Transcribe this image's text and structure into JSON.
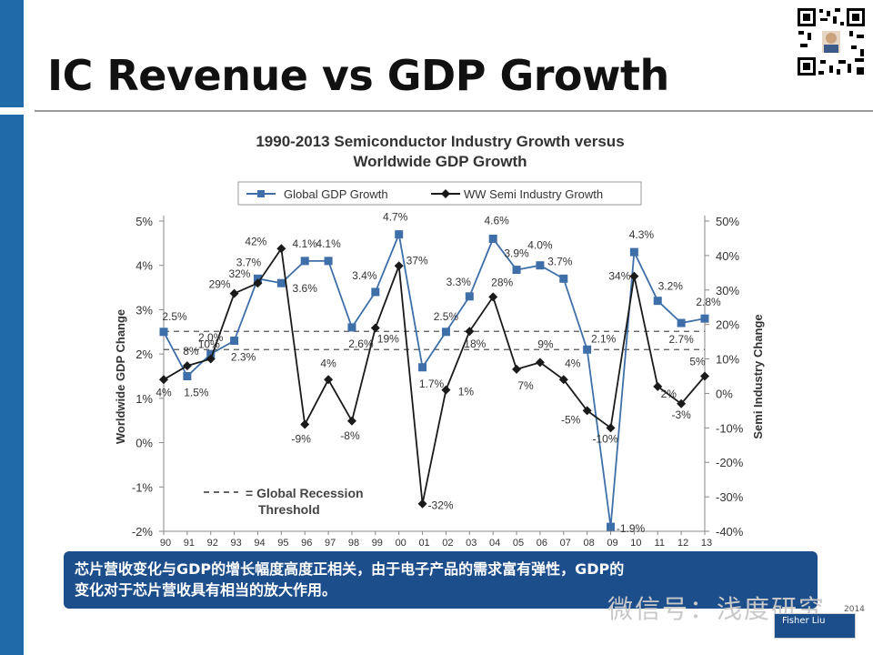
{
  "slide": {
    "title": "IC Revenue vs GDP Growth",
    "banner_line1": "芯片营收变化与GDP的增长幅度高度正相关，由于电子产品的需求富有弹性，GDP的",
    "banner_line2": "变化对于芯片营收具有相当的放大作用。",
    "watermark": "微信号：浅度研究",
    "watermark_year": "2014",
    "author": "Fisher Liu"
  },
  "colors": {
    "accent_bar": "#1f6aa8",
    "gdp_series": "#3e6fa9",
    "semi_series": "#1a1a1a",
    "banner": "#1d4e8c"
  },
  "chart_data": {
    "type": "line",
    "title": "1990-2013 Semiconductor Industry Growth versus Worldwide GDP Growth",
    "title_lines": [
      "1990-2013 Semiconductor Industry Growth versus",
      "Worldwide GDP Growth"
    ],
    "x": [
      "90",
      "91",
      "92",
      "93",
      "94",
      "95",
      "96",
      "97",
      "98",
      "99",
      "00",
      "01",
      "02",
      "03",
      "04",
      "05",
      "06",
      "07",
      "08",
      "09",
      "10",
      "11",
      "12",
      "13"
    ],
    "ylabel": "Worldwide GDP Change",
    "y2label": "Semi Industry Change",
    "ylim": [
      -2,
      5
    ],
    "y2lim": [
      -40,
      50
    ],
    "y_ticks": [
      "-2%",
      "-1%",
      "0%",
      "1%",
      "2%",
      "3%",
      "4%",
      "5%"
    ],
    "y2_ticks": [
      "-40%",
      "-30%",
      "-20%",
      "-10%",
      "0%",
      "10%",
      "20%",
      "30%",
      "40%",
      "50%"
    ],
    "legend_placement": "top",
    "series": [
      {
        "name": "Global GDP Growth",
        "axis": "left",
        "marker": "square",
        "values": [
          2.5,
          1.5,
          2.0,
          2.3,
          3.7,
          3.6,
          4.1,
          4.1,
          2.6,
          3.4,
          4.7,
          1.7,
          2.5,
          3.3,
          4.6,
          3.9,
          4.0,
          3.7,
          2.1,
          -1.9,
          4.3,
          3.2,
          2.7,
          2.8
        ],
        "labels": [
          "2.5%",
          "1.5%",
          "2.0%",
          "2.3%",
          "3.7%",
          "",
          "4.1%",
          "4.1%",
          "2.6%",
          "3.4%",
          "4.7%",
          "1.7%",
          "2.5%",
          "3.3%",
          "4.6%",
          "3.9%",
          "4.0%",
          "3.7%",
          "2.1%",
          "-1.9%",
          "4.3%",
          "3.2%",
          "2.7%",
          "2.8%"
        ]
      },
      {
        "name": "WW Semi Industry Growth",
        "axis": "right",
        "marker": "diamond",
        "values": [
          4,
          8,
          10,
          29,
          32,
          42,
          -9,
          4,
          -8,
          19,
          37,
          -32,
          1,
          18,
          28,
          7,
          9,
          4,
          -5,
          -10,
          34,
          2,
          -3,
          5
        ],
        "labels": [
          "4%",
          "8%",
          "10%",
          "29%",
          "32%",
          "42%",
          "-9%",
          "4%",
          "-8%",
          "19%",
          "37%",
          "-32%",
          "1%",
          "18%",
          "28%",
          "7%",
          "9%",
          "4%",
          "-5%",
          "-10%",
          "34%",
          "2%",
          "-3%",
          "5%"
        ]
      }
    ],
    "extra_label": "3.6%",
    "reference_lines": [
      {
        "axis": "left",
        "value": 2.1
      },
      {
        "axis": "right",
        "value": 18
      }
    ],
    "threshold_label": [
      "= Global Recession",
      "Threshold"
    ]
  }
}
